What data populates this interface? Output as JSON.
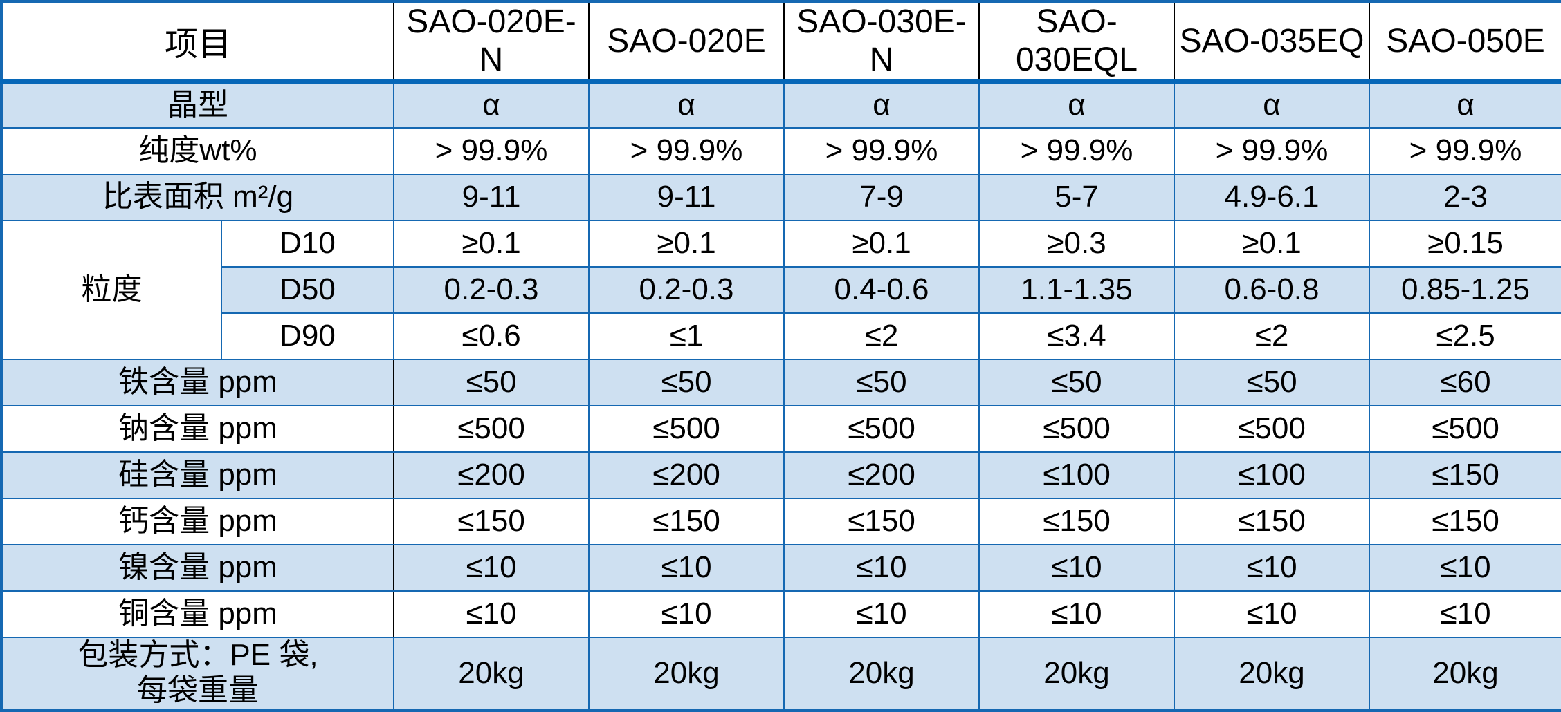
{
  "table": {
    "header": {
      "item": "项目",
      "products": [
        "SAO-020E-N",
        "SAO-020E",
        "SAO-030E-N",
        "SAO-030EQL",
        "SAO-035EQ",
        "SAO-050E"
      ]
    },
    "rows": [
      {
        "label": "晶型",
        "values": [
          "α",
          "α",
          "α",
          "α",
          "α",
          "α"
        ],
        "shade": "blue"
      },
      {
        "label": "纯度wt%",
        "values": [
          "> 99.9%",
          "> 99.9%",
          "> 99.9%",
          "> 99.9%",
          "> 99.9%",
          "> 99.9%"
        ],
        "shade": "white"
      },
      {
        "label": "比表面积 m²/g",
        "values": [
          "9-11",
          "9-11",
          "7-9",
          "5-7",
          "4.9-6.1",
          "2-3"
        ],
        "shade": "blue"
      },
      {
        "group": "粒度",
        "sub": "D10",
        "values": [
          "≥0.1",
          "≥0.1",
          "≥0.1",
          "≥0.3",
          "≥0.1",
          "≥0.15"
        ],
        "shade": "white"
      },
      {
        "sub": "D50",
        "values": [
          "0.2-0.3",
          "0.2-0.3",
          "0.4-0.6",
          "1.1-1.35",
          "0.6-0.8",
          "0.85-1.25"
        ],
        "shade": "blue"
      },
      {
        "sub": "D90",
        "values": [
          "≤0.6",
          "≤1",
          "≤2",
          "≤3.4",
          "≤2",
          "≤2.5"
        ],
        "shade": "white"
      },
      {
        "label": "铁含量 ppm",
        "values": [
          "≤50",
          "≤50",
          "≤50",
          "≤50",
          "≤50",
          "≤60"
        ],
        "shade": "blue",
        "black_divider": true
      },
      {
        "label": "钠含量 ppm",
        "values": [
          "≤500",
          "≤500",
          "≤500",
          "≤500",
          "≤500",
          "≤500"
        ],
        "shade": "white",
        "black_divider": true
      },
      {
        "label": "硅含量 ppm",
        "values": [
          "≤200",
          "≤200",
          "≤200",
          "≤100",
          "≤100",
          "≤150"
        ],
        "shade": "blue",
        "black_divider": true
      },
      {
        "label": "钙含量 ppm",
        "values": [
          "≤150",
          "≤150",
          "≤150",
          "≤150",
          "≤150",
          "≤150"
        ],
        "shade": "white",
        "black_divider": true
      },
      {
        "label": "镍含量 ppm",
        "values": [
          "≤10",
          "≤10",
          "≤10",
          "≤10",
          "≤10",
          "≤10"
        ],
        "shade": "blue",
        "black_divider": true
      },
      {
        "label": "铜含量 ppm",
        "values": [
          "≤10",
          "≤10",
          "≤10",
          "≤10",
          "≤10",
          "≤10"
        ],
        "shade": "white",
        "black_divider": true
      },
      {
        "label": "包装方式：PE 袋,\n每袋重量",
        "values": [
          "20kg",
          "20kg",
          "20kg",
          "20kg",
          "20kg",
          "20kg"
        ],
        "shade": "blue",
        "tall": true
      }
    ]
  },
  "colors": {
    "row_shade": "#CEE0F1",
    "border_blue": "#1568B2",
    "border_thick": "#0667B8",
    "header_divider_black": "#000000",
    "text": "#000000",
    "background": "#FFFFFF"
  }
}
